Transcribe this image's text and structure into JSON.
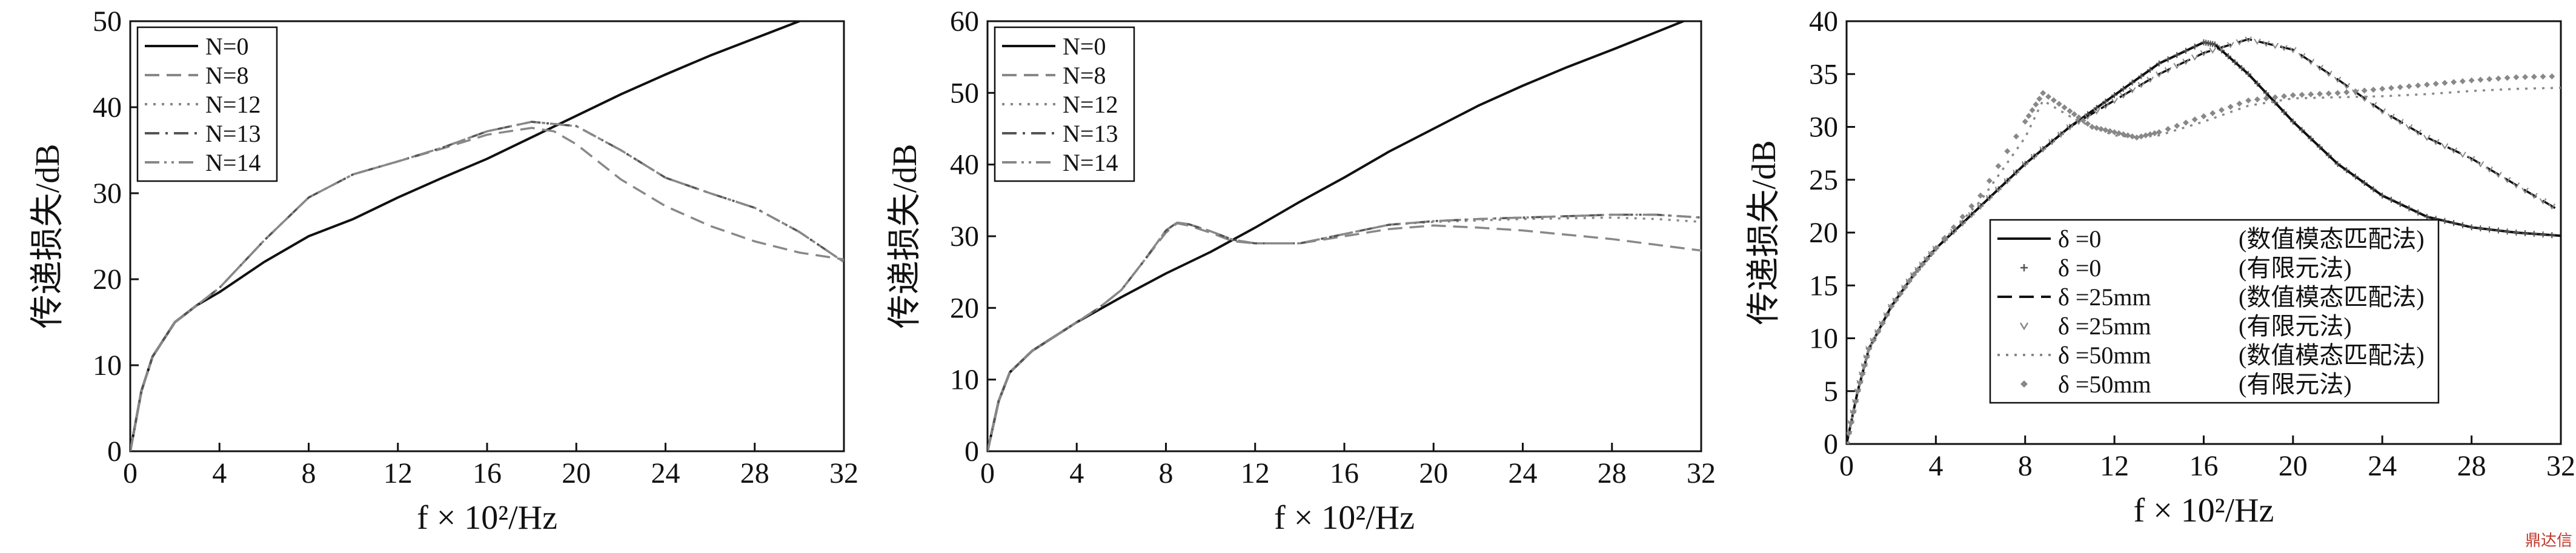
{
  "colors": {
    "axis": "#111111",
    "black": "#111111",
    "grey": "#888888",
    "dark_grey": "#555555",
    "watermark": "#c0392b"
  },
  "watermark": "鼎达信",
  "chart_data": [
    {
      "type": "line",
      "xlabel": "f × 10²/Hz",
      "ylabel": "传递损失/dB",
      "xlim": [
        0,
        32
      ],
      "ylim": [
        0,
        50
      ],
      "xticks": [
        0,
        4,
        8,
        12,
        16,
        20,
        24,
        28,
        32
      ],
      "yticks": [
        0,
        10,
        20,
        30,
        40,
        50
      ],
      "legend_position": "top-left",
      "series": [
        {
          "name": "N=0",
          "style": "solid",
          "color": "#111111",
          "x": [
            0,
            0.5,
            1,
            2,
            3,
            4,
            6,
            8,
            10,
            12,
            14,
            16,
            18,
            20,
            22,
            24,
            26,
            28,
            30,
            32
          ],
          "y": [
            0,
            7,
            11,
            15,
            17,
            18.5,
            22,
            25,
            27,
            29.5,
            31.8,
            34,
            36.5,
            39,
            41.5,
            43.8,
            46,
            48,
            50,
            52
          ]
        },
        {
          "name": "N=8",
          "style": "dashed",
          "color": "#888888",
          "x": [
            0,
            0.5,
            1,
            2,
            3,
            4,
            6,
            8,
            10,
            12,
            14,
            16,
            18,
            19,
            20,
            22,
            24,
            26,
            28,
            30,
            32
          ],
          "y": [
            0,
            7,
            11,
            15,
            17,
            19,
            24.5,
            29.5,
            32.2,
            33.7,
            35.2,
            36.8,
            37.6,
            37.2,
            35.7,
            31.6,
            28.5,
            26.2,
            24.4,
            23.1,
            22.3
          ]
        },
        {
          "name": "N=12",
          "style": "dotted",
          "color": "#888888",
          "x": [
            0,
            0.5,
            1,
            2,
            3,
            4,
            6,
            8,
            10,
            12,
            14,
            16,
            18,
            20,
            22,
            24,
            26,
            28,
            30,
            32
          ],
          "y": [
            0,
            7,
            11,
            15,
            17,
            19,
            24.5,
            29.5,
            32.2,
            33.7,
            35.3,
            37.2,
            38.3,
            37.8,
            35,
            31.8,
            30,
            28.3,
            25.5,
            22
          ]
        },
        {
          "name": "N=13",
          "style": "dashdot",
          "color": "#555555",
          "x": [
            0,
            0.5,
            1,
            2,
            3,
            4,
            6,
            8,
            10,
            12,
            14,
            16,
            18,
            20,
            22,
            24,
            26,
            28,
            30,
            32
          ],
          "y": [
            0,
            7,
            11,
            15,
            17,
            19,
            24.5,
            29.5,
            32.2,
            33.7,
            35.3,
            37.2,
            38.3,
            37.8,
            35,
            31.8,
            30,
            28.3,
            25.5,
            22
          ]
        },
        {
          "name": "N=14",
          "style": "dashdotdot",
          "color": "#888888",
          "x": [
            0,
            0.5,
            1,
            2,
            3,
            4,
            6,
            8,
            10,
            12,
            14,
            16,
            18,
            20,
            22,
            24,
            26,
            28,
            30,
            32
          ],
          "y": [
            0,
            7,
            11,
            15,
            17,
            19,
            24.5,
            29.5,
            32.2,
            33.7,
            35.3,
            37.2,
            38.3,
            37.8,
            35,
            31.8,
            30,
            28.3,
            25.5,
            22
          ]
        }
      ]
    },
    {
      "type": "line",
      "xlabel": "f × 10²/Hz",
      "ylabel": "传递损失/dB",
      "xlim": [
        0,
        32
      ],
      "ylim": [
        0,
        60
      ],
      "xticks": [
        0,
        4,
        8,
        12,
        16,
        20,
        24,
        28,
        32
      ],
      "yticks": [
        0,
        10,
        20,
        30,
        40,
        50,
        60
      ],
      "legend_position": "top-left",
      "series": [
        {
          "name": "N=0",
          "style": "solid",
          "color": "#111111",
          "x": [
            0,
            0.5,
            1,
            2,
            3,
            4,
            6,
            8,
            10,
            12,
            14,
            16,
            18,
            20,
            22,
            24,
            26,
            28,
            30,
            32
          ],
          "y": [
            0,
            7,
            11,
            14,
            16,
            18,
            21.5,
            24.8,
            27.8,
            31.2,
            34.8,
            38.2,
            41.8,
            45,
            48.2,
            51,
            53.6,
            56,
            58.5,
            61
          ]
        },
        {
          "name": "N=8",
          "style": "dashed",
          "color": "#888888",
          "x": [
            0,
            0.5,
            1,
            2,
            3,
            4,
            5,
            6,
            7,
            8,
            8.5,
            9,
            10,
            11,
            12,
            14,
            16,
            18,
            20,
            22,
            24,
            26,
            28,
            30,
            32
          ],
          "y": [
            0,
            7,
            11,
            14,
            16,
            18,
            20,
            22.5,
            26.5,
            30.5,
            31.8,
            31.5,
            30.5,
            29.3,
            29,
            29,
            30,
            31,
            31.5,
            31.2,
            30.8,
            30.2,
            29.6,
            28.8,
            28
          ]
        },
        {
          "name": "N=12",
          "style": "dotted",
          "color": "#888888",
          "x": [
            0,
            0.5,
            1,
            2,
            3,
            4,
            5,
            6,
            7,
            8,
            8.5,
            9,
            10,
            11,
            12,
            14,
            16,
            18,
            20,
            22,
            24,
            26,
            28,
            30,
            32
          ],
          "y": [
            0,
            7,
            11,
            14,
            16,
            18,
            20,
            22.5,
            26.5,
            30.8,
            31.9,
            31.7,
            30.7,
            29.5,
            29,
            29,
            30.3,
            31.6,
            32,
            32.2,
            32.4,
            32.5,
            32.6,
            32.4,
            32
          ]
        },
        {
          "name": "N=13",
          "style": "dashdot",
          "color": "#555555",
          "x": [
            0,
            0.5,
            1,
            2,
            3,
            4,
            5,
            6,
            7,
            8,
            8.5,
            9,
            10,
            11,
            12,
            14,
            16,
            18,
            20,
            22,
            24,
            26,
            28,
            30,
            32
          ],
          "y": [
            0,
            7,
            11,
            14,
            16,
            18,
            20,
            22.5,
            26.5,
            30.8,
            31.9,
            31.7,
            30.7,
            29.5,
            29,
            29,
            30.3,
            31.6,
            32.1,
            32.4,
            32.6,
            32.8,
            33,
            33,
            32.6
          ]
        },
        {
          "name": "N=14",
          "style": "dashdotdot",
          "color": "#888888",
          "x": [
            0,
            0.5,
            1,
            2,
            3,
            4,
            5,
            6,
            7,
            8,
            8.5,
            9,
            10,
            11,
            12,
            14,
            16,
            18,
            20,
            22,
            24,
            26,
            28,
            30,
            32
          ],
          "y": [
            0,
            7,
            11,
            14,
            16,
            18,
            20,
            22.5,
            26.5,
            30.8,
            31.9,
            31.7,
            30.7,
            29.5,
            29,
            29,
            30.3,
            31.6,
            32.1,
            32.4,
            32.6,
            32.8,
            33,
            33,
            32.6
          ]
        }
      ]
    },
    {
      "type": "line",
      "xlabel": "f × 10²/Hz",
      "ylabel": "传递损失/dB",
      "xlim": [
        0,
        32
      ],
      "ylim": [
        0,
        40
      ],
      "xticks": [
        0,
        4,
        8,
        12,
        16,
        20,
        24,
        28,
        32
      ],
      "yticks": [
        0,
        5,
        10,
        15,
        20,
        25,
        30,
        35,
        40
      ],
      "legend_position": "bottom-center",
      "series": [
        {
          "name": "δ =0",
          "method": "(数值模态匹配法)",
          "style": "solid",
          "color": "#111111",
          "x": [
            0,
            0.5,
            1,
            2,
            3,
            4,
            6,
            8,
            10,
            12,
            14,
            16,
            16.5,
            18,
            20,
            22,
            24,
            26,
            28,
            30,
            32
          ],
          "y": [
            0,
            5,
            9,
            13,
            16,
            18.5,
            22.5,
            26.5,
            30,
            33,
            36,
            38,
            37.8,
            35,
            30.5,
            26.5,
            23.5,
            21.5,
            20.5,
            20,
            19.7
          ]
        },
        {
          "name": "δ =0",
          "method": "(有限元法)",
          "style": "marker-plus",
          "color": "#555555",
          "x": [
            0,
            0.5,
            1,
            2,
            3,
            4,
            6,
            8,
            10,
            12,
            14,
            16,
            16.5,
            18,
            20,
            22,
            24,
            26,
            28,
            30,
            32
          ],
          "y": [
            0,
            5,
            9,
            13,
            16,
            18.5,
            22.5,
            26.5,
            30,
            33,
            36,
            38,
            37.8,
            35,
            30.5,
            26.5,
            23.5,
            21.5,
            20.5,
            20,
            19.7
          ]
        },
        {
          "name": "δ =25mm",
          "method": "(数值模态匹配法)",
          "style": "dashed",
          "color": "#111111",
          "x": [
            0,
            0.5,
            1,
            2,
            3,
            4,
            6,
            8,
            10,
            12,
            14,
            16,
            18,
            20,
            22,
            24,
            26,
            28,
            30,
            32
          ],
          "y": [
            0,
            5,
            9,
            13,
            16,
            18.5,
            22.5,
            26.5,
            30,
            32.5,
            35,
            37,
            38.3,
            37.3,
            34.5,
            31.5,
            29,
            27,
            24.5,
            22
          ]
        },
        {
          "name": "δ =25mm",
          "method": "(有限元法)",
          "style": "marker-v",
          "color": "#888888",
          "x": [
            0,
            0.5,
            1,
            2,
            3,
            4,
            6,
            8,
            10,
            12,
            14,
            16,
            18,
            20,
            22,
            24,
            26,
            28,
            30,
            32
          ],
          "y": [
            0,
            5,
            9,
            13,
            16,
            18.5,
            22.5,
            26.5,
            30,
            32.5,
            35,
            37,
            38.3,
            37.3,
            34.5,
            31.5,
            29,
            27,
            24.5,
            22
          ]
        },
        {
          "name": "δ =50mm",
          "method": "(数值模态匹配法)",
          "style": "dotted",
          "color": "#888888",
          "x": [
            0,
            0.5,
            1,
            2,
            3,
            4,
            6,
            8,
            8.8,
            10,
            11,
            12,
            13,
            14,
            16,
            18,
            20,
            22,
            24,
            26,
            28,
            30,
            32
          ],
          "y": [
            0,
            5,
            9,
            13,
            16,
            18.5,
            23,
            29,
            32.5,
            31,
            30,
            29.2,
            29,
            29.2,
            30.5,
            32,
            32.7,
            32.8,
            32.9,
            33.1,
            33.4,
            33.6,
            33.7
          ]
        },
        {
          "name": "δ =50mm",
          "method": "(有限元法)",
          "style": "marker-diamond",
          "color": "#888888",
          "x": [
            0,
            0.5,
            1,
            2,
            3,
            4,
            6,
            8,
            8.8,
            10,
            11,
            12,
            13,
            14,
            16,
            18,
            20,
            22,
            24,
            26,
            28,
            30,
            32
          ],
          "y": [
            0,
            5,
            9,
            13,
            16,
            18.5,
            23.5,
            30.5,
            33.2,
            31.5,
            30,
            29.5,
            29,
            29.5,
            31,
            32.5,
            33,
            33.2,
            33.6,
            34,
            34.4,
            34.7,
            34.8
          ]
        }
      ]
    }
  ]
}
